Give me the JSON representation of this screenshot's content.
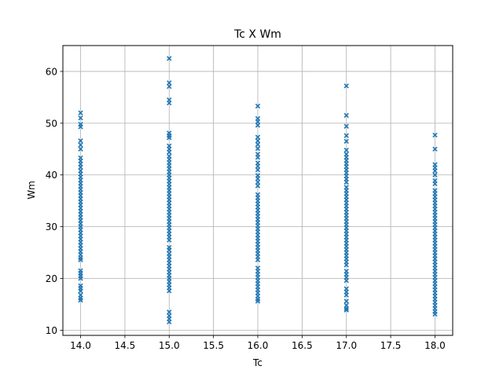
{
  "chart_data": {
    "type": "scatter",
    "title": "Tc X Wm",
    "xlabel": "Tc",
    "ylabel": "Wm",
    "xlim": [
      13.8,
      18.2
    ],
    "ylim": [
      9,
      65
    ],
    "xticks": [
      "14.0",
      "14.5",
      "15.0",
      "15.5",
      "16.0",
      "16.5",
      "17.0",
      "17.5",
      "18.0"
    ],
    "yticks": [
      "10",
      "20",
      "30",
      "40",
      "50",
      "60"
    ],
    "grid": true,
    "marker": "x",
    "color": "#1f77b4",
    "series": [
      {
        "x": 14,
        "y": [
          52.0,
          51.0,
          49.8,
          49.3,
          46.6,
          45.8,
          45.0,
          43.3,
          42.7,
          42.1,
          41.5,
          40.8,
          40.2,
          39.6,
          39.0,
          38.4,
          37.8,
          37.2,
          36.6,
          36.0,
          35.4,
          34.8,
          34.2,
          33.6,
          33.0,
          32.4,
          31.8,
          31.2,
          30.6,
          30.0,
          29.4,
          28.8,
          28.2,
          27.6,
          27.0,
          26.4,
          25.8,
          25.2,
          24.6,
          24.0,
          23.6,
          21.5,
          21.0,
          20.5,
          20.0,
          18.6,
          18.1,
          17.6,
          16.8,
          16.2,
          15.8
        ]
      },
      {
        "x": 15,
        "y": [
          62.5,
          57.8,
          57.1,
          54.5,
          53.9,
          48.1,
          47.6,
          47.2,
          45.6,
          45.0,
          44.4,
          43.6,
          43.0,
          42.4,
          41.8,
          41.2,
          40.6,
          40.0,
          39.4,
          38.8,
          38.2,
          37.6,
          37.0,
          36.4,
          35.8,
          35.2,
          34.6,
          34.0,
          33.4,
          32.8,
          32.2,
          31.6,
          31.0,
          30.4,
          29.8,
          29.2,
          28.6,
          28.0,
          27.4,
          26.0,
          25.5,
          24.8,
          24.2,
          23.6,
          23.0,
          22.4,
          21.8,
          21.2,
          20.6,
          20.0,
          19.4,
          18.8,
          18.2,
          17.6,
          13.5,
          12.8,
          12.2,
          11.6
        ]
      },
      {
        "x": 16,
        "y": [
          53.3,
          50.9,
          50.3,
          49.6,
          47.3,
          46.6,
          45.9,
          45.1,
          44.0,
          43.4,
          42.3,
          41.7,
          41.0,
          39.9,
          39.3,
          38.6,
          37.9,
          36.2,
          35.6,
          35.0,
          34.4,
          33.8,
          33.2,
          32.6,
          32.0,
          31.4,
          30.8,
          30.2,
          29.6,
          29.0,
          28.4,
          27.8,
          27.2,
          26.6,
          26.0,
          25.4,
          24.8,
          24.2,
          23.6,
          22.0,
          21.4,
          20.8,
          20.2,
          19.6,
          19.0,
          18.4,
          17.8,
          17.2,
          16.6,
          16.0,
          15.6
        ]
      },
      {
        "x": 17,
        "y": [
          57.2,
          51.5,
          49.4,
          47.6,
          46.5,
          44.8,
          44.0,
          43.4,
          42.8,
          42.2,
          41.6,
          41.0,
          40.4,
          39.8,
          39.2,
          38.6,
          37.6,
          37.0,
          36.4,
          35.8,
          35.2,
          34.6,
          34.0,
          33.4,
          32.8,
          32.2,
          31.6,
          31.0,
          30.4,
          29.8,
          29.2,
          28.6,
          28.0,
          27.4,
          26.8,
          26.2,
          25.6,
          25.0,
          24.4,
          23.8,
          23.2,
          22.6,
          21.4,
          20.8,
          20.2,
          19.6,
          18.0,
          17.4,
          16.8,
          15.6,
          14.8,
          14.2,
          13.9
        ]
      },
      {
        "x": 18,
        "y": [
          47.7,
          45.0,
          42.0,
          41.4,
          40.8,
          40.0,
          38.9,
          38.3,
          37.0,
          36.4,
          35.8,
          35.2,
          34.6,
          34.0,
          33.4,
          32.8,
          32.2,
          31.6,
          31.0,
          30.4,
          29.8,
          29.2,
          28.6,
          28.0,
          27.4,
          26.8,
          26.2,
          25.6,
          25.0,
          24.4,
          23.8,
          23.2,
          22.6,
          22.0,
          21.4,
          20.8,
          20.2,
          19.6,
          19.0,
          18.4,
          17.8,
          17.2,
          16.6,
          16.0,
          15.4,
          14.8,
          14.2,
          13.6,
          13.1
        ]
      }
    ]
  }
}
